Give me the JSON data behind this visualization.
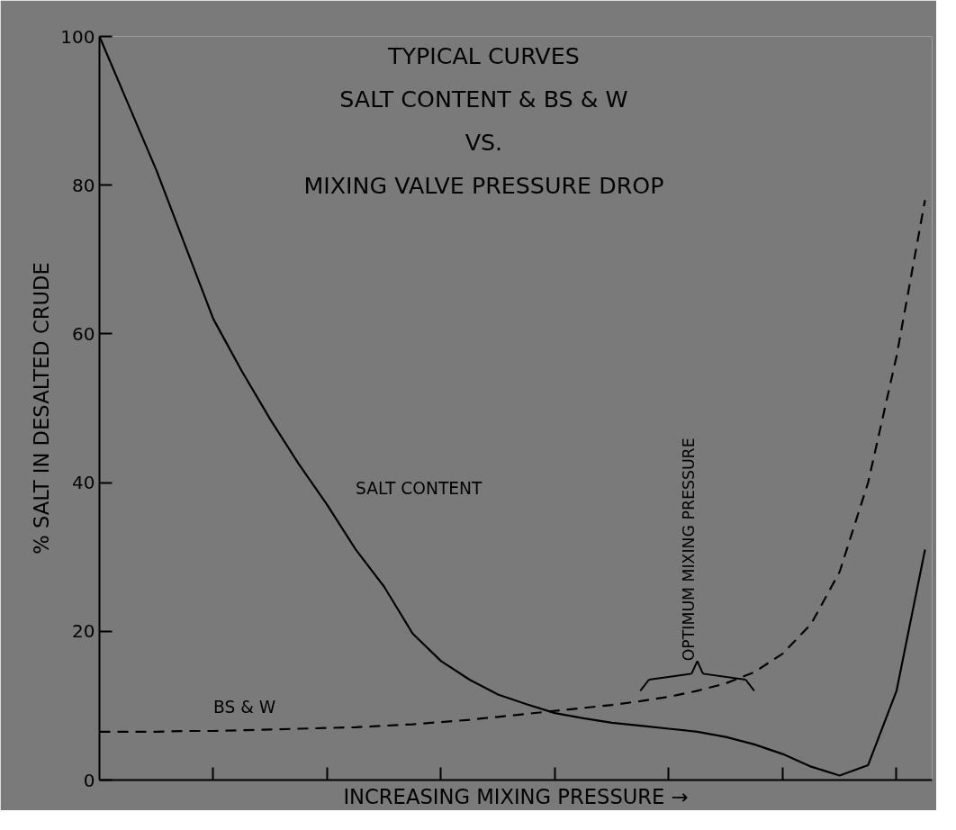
{
  "chart_data": {
    "type": "line",
    "title": "TYPICAL CURVES",
    "subtitle": "SALT CONTENT & BS & W\nVS.\nMIXING VALVE PRESSURE DROP",
    "xlabel": "INCREASING MIXING PRESSURE →",
    "ylabel": "% SALT IN DESALTED CRUDE",
    "annotations": [
      "OPTIMUM MIXING PRESSURE"
    ],
    "categories": [
      null,
      null,
      null,
      null,
      null,
      null,
      null,
      null,
      null,
      null,
      null,
      null,
      null,
      null,
      null,
      null,
      null,
      null,
      null,
      null,
      null,
      null,
      null,
      null,
      null,
      null,
      null,
      null,
      null,
      null
    ],
    "series": [
      {
        "name": "SALT CONTENT",
        "color": "#000000",
        "line_style": "solid",
        "values": [
          100,
          91,
          82,
          72,
          62,
          55,
          48.5,
          42.5,
          37,
          31,
          26,
          19.7,
          16,
          13.5,
          11.5,
          10.2,
          9,
          8.3,
          7.7,
          7.3,
          6.9,
          6.5,
          5.8,
          4.8,
          3.5,
          1.8,
          0.6,
          2,
          12,
          31
        ]
      },
      {
        "name": "BS & W",
        "color": "#000000",
        "line_style": "dashed",
        "values": [
          6.5,
          6.5,
          6.5,
          6.6,
          6.6,
          6.7,
          6.8,
          6.9,
          7,
          7.1,
          7.3,
          7.5,
          7.8,
          8.1,
          8.5,
          8.9,
          9.3,
          9.7,
          10.1,
          10.6,
          11.2,
          12,
          13,
          14.5,
          17,
          21,
          28,
          40,
          57,
          78
        ]
      }
    ],
    "ylim": [
      0,
      100
    ],
    "yticks": [
      0,
      20,
      40,
      60,
      80,
      100
    ],
    "grid": false,
    "legend": false,
    "tick_labels": "y",
    "marker": "none"
  }
}
